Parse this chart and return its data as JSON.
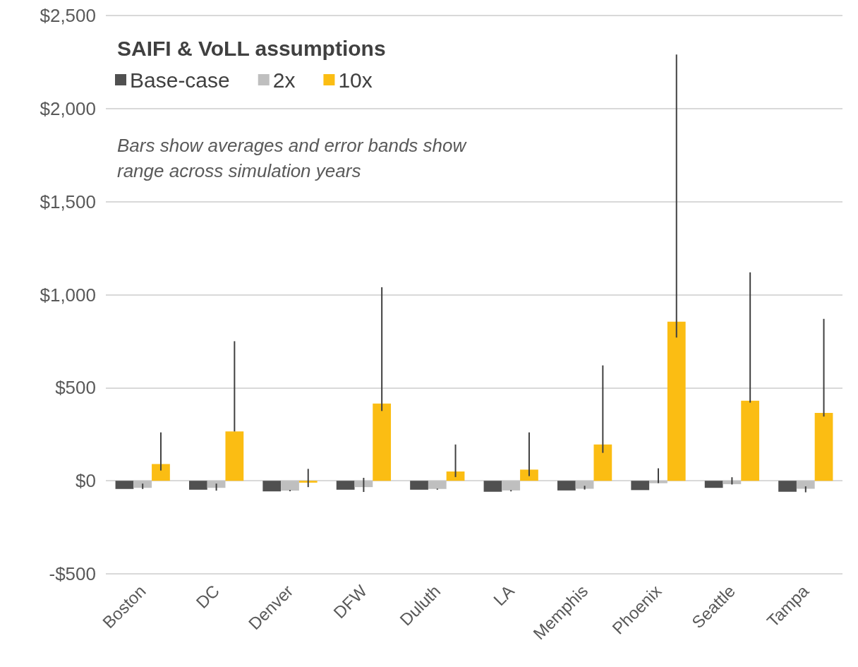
{
  "chart_data": {
    "type": "bar",
    "legend_title": "SAIFI & VoLL assumptions",
    "annotations": [
      "Bars show averages and error bands show range across simulation years"
    ],
    "categories": [
      "Boston",
      "DC",
      "Denver",
      "DFW",
      "Duluth",
      "LA",
      "Memphis",
      "Phoenix",
      "Seattle",
      "Tampa"
    ],
    "series": [
      {
        "name": "Base-case",
        "color": "#505050",
        "values": [
          -44,
          -48,
          -57,
          -48,
          -48,
          -59,
          -52,
          -50,
          -38,
          -59
        ]
      },
      {
        "name": "2x",
        "color": "#bfbfbf",
        "values": [
          -38,
          -38,
          -53,
          -34,
          -44,
          -52,
          -43,
          -13,
          -18,
          -43
        ],
        "errors": [
          [
            -44,
            -15
          ],
          [
            -53,
            -15
          ],
          [
            -56,
            -50
          ],
          [
            -60,
            16
          ],
          [
            -48,
            -42
          ],
          [
            -57,
            -50
          ],
          [
            -47,
            -27
          ],
          [
            -13,
            67
          ],
          [
            -20,
            19
          ],
          [
            -62,
            -30
          ]
        ]
      },
      {
        "name": "10x",
        "color": "#fbbd13",
        "values": [
          90,
          265,
          -10,
          415,
          50,
          60,
          195,
          855,
          430,
          365
        ],
        "errors": [
          [
            55,
            260
          ],
          [
            265,
            750
          ],
          [
            -34,
            64
          ],
          [
            375,
            1040
          ],
          [
            20,
            195
          ],
          [
            25,
            260
          ],
          [
            150,
            620
          ],
          [
            770,
            2290
          ],
          [
            420,
            1120
          ],
          [
            345,
            870
          ]
        ]
      }
    ],
    "ylim": [
      -500,
      2500
    ],
    "yticks": [
      {
        "value": -500,
        "label": "-$500"
      },
      {
        "value": 0,
        "label": "$0"
      },
      {
        "value": 500,
        "label": "$500"
      },
      {
        "value": 1000,
        "label": "$1,000"
      },
      {
        "value": 1500,
        "label": "$1,500"
      },
      {
        "value": 2000,
        "label": "$2,000"
      },
      {
        "value": 2500,
        "label": "$2,500"
      }
    ],
    "grid": "y",
    "legend": "top left"
  }
}
